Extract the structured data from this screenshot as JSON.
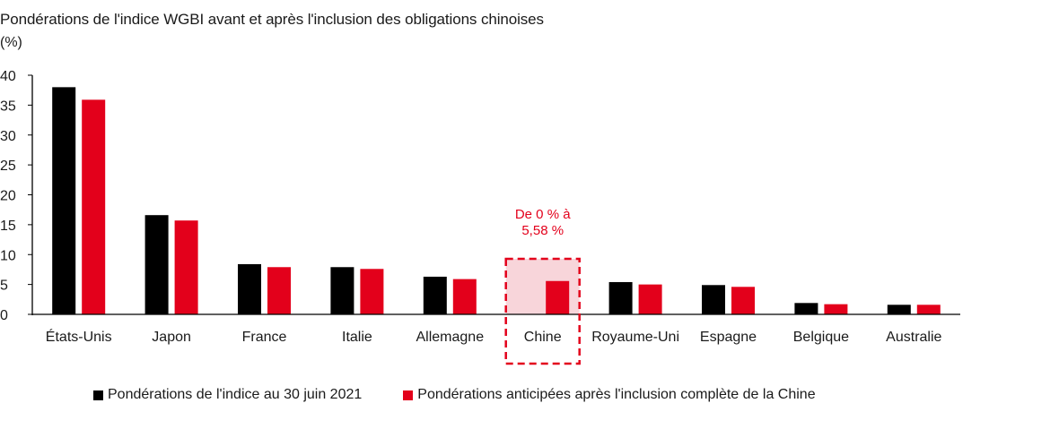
{
  "chart_data": {
    "type": "bar",
    "title": "Pondérations de l'indice WGBI avant et après l'inclusion des obligations chinoises",
    "unit_label": "(%)",
    "categories": [
      "États-Unis",
      "Japon",
      "France",
      "Italie",
      "Allemagne",
      "Chine",
      "Royaume-Uni",
      "Espagne",
      "Belgique",
      "Australie"
    ],
    "series": [
      {
        "name": "Pondérations de l'indice au 30 juin 2021",
        "color": "#000000",
        "values": [
          38.0,
          16.6,
          8.4,
          7.9,
          6.3,
          0,
          5.4,
          4.9,
          1.9,
          1.6
        ]
      },
      {
        "name": "Pondérations anticipées après l'inclusion complète de la Chine",
        "color": "#e3001b",
        "values": [
          35.9,
          15.7,
          7.9,
          7.6,
          5.9,
          5.58,
          5.0,
          4.6,
          1.7,
          1.6
        ]
      }
    ],
    "ylim": [
      0,
      40
    ],
    "yticks": [
      0,
      5,
      10,
      15,
      20,
      25,
      30,
      35,
      40
    ],
    "grid": false,
    "legend_position": "bottom",
    "highlight": {
      "category": "Chine",
      "annotation_line1": "De 0 % à",
      "annotation_line2": "5,58 %",
      "color": "#e3001b",
      "fill": "#f8d5da"
    }
  }
}
